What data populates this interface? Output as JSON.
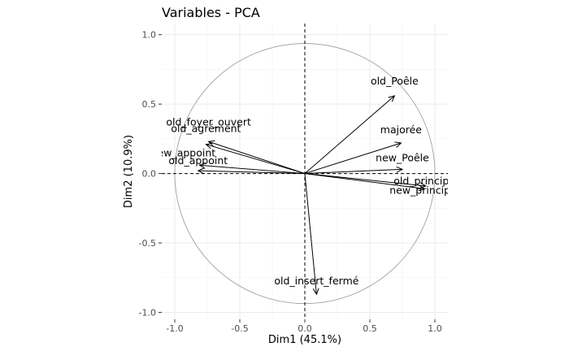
{
  "chart_data": {
    "type": "scatter",
    "title": "Variables - PCA",
    "xlabel": "Dim1 (45.1%)",
    "ylabel": "Dim2 (10.9%)",
    "xlim": [
      -1.1,
      1.1
    ],
    "ylim": [
      -1.05,
      1.08
    ],
    "x_ticks": [
      -1.0,
      -0.5,
      0.0,
      0.5,
      1.0
    ],
    "y_ticks": [
      -1.0,
      -0.5,
      0.0,
      0.5,
      1.0
    ],
    "x_tick_labels": [
      "-1.0",
      "-0.5",
      "0.0",
      "0.5",
      "1.0"
    ],
    "y_tick_labels": [
      "-1.0",
      "-0.5",
      "0.0",
      "0.5",
      "1.0"
    ],
    "grid": true,
    "correlation_circle": true,
    "reference_lines": [
      0,
      0
    ],
    "arrow_color": "#000000",
    "circle_color": "#999999",
    "variables": [
      {
        "name": "old_Poêle",
        "x": 0.69,
        "y": 0.56
      },
      {
        "name": "majorée",
        "x": 0.74,
        "y": 0.22
      },
      {
        "name": "new_Poêle",
        "x": 0.75,
        "y": 0.03
      },
      {
        "name": "old_principal",
        "x": 0.93,
        "y": -0.09
      },
      {
        "name": "new_principal",
        "x": 0.92,
        "y": -0.11
      },
      {
        "name": "old_foyer_ouvert",
        "x": -0.74,
        "y": 0.23
      },
      {
        "name": "old_agrément",
        "x": -0.76,
        "y": 0.21
      },
      {
        "name": "new_appoint",
        "x": -0.81,
        "y": 0.06
      },
      {
        "name": "old_appoint",
        "x": -0.82,
        "y": 0.02
      },
      {
        "name": "old_insert_fermé",
        "x": 0.09,
        "y": -0.87
      }
    ]
  }
}
